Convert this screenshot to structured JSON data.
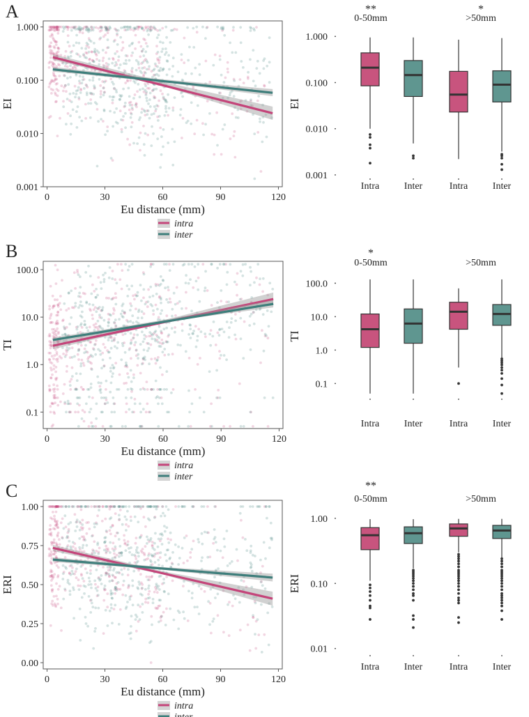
{
  "figure": {
    "colors": {
      "intra": "#c4457a",
      "inter": "#3e7e7b",
      "intra_box": "#c8547e",
      "inter_box": "#5f9690",
      "frame": "#555555",
      "ci": "#9a9a9a"
    },
    "legend": {
      "intra": "intra",
      "inter": "inter"
    }
  },
  "chart_data": [
    {
      "id": "A-scatter",
      "panel_letter": "A",
      "type": "scatter",
      "xlabel": "Eu distance (mm)",
      "ylabel": "EI",
      "xlim": [
        -2,
        122
      ],
      "ylim": [
        0.001,
        1.3
      ],
      "yscale": "log",
      "xticks": [
        0,
        30,
        60,
        90,
        120
      ],
      "yticks": [
        0.001,
        0.01,
        0.1,
        1.0
      ],
      "yticklabels": [
        "0.001",
        "0.010",
        "0.100",
        "1.000"
      ],
      "series": [
        {
          "name": "intra",
          "fit": [
            [
              3,
              0.27
            ],
            [
              117,
              0.024
            ]
          ],
          "ci": [
            [
              3,
              0.24,
              0.31
            ],
            [
              60,
              0.078,
              0.094
            ],
            [
              117,
              0.018,
              0.032
            ]
          ]
        },
        {
          "name": "inter",
          "fit": [
            [
              3,
              0.16
            ],
            [
              117,
              0.058
            ]
          ],
          "ci": [
            [
              3,
              0.145,
              0.178
            ],
            [
              60,
              0.092,
              0.104
            ],
            [
              117,
              0.05,
              0.068
            ]
          ]
        }
      ]
    },
    {
      "id": "A-box",
      "type": "box",
      "ylabel": "EI",
      "yscale": "log",
      "ylim": [
        0.001,
        1.2
      ],
      "yticks": [
        0.001,
        0.01,
        0.1,
        1.0
      ],
      "yticklabels": [
        "0.001",
        "0.010",
        "0.100",
        "1.000"
      ],
      "groups": [
        {
          "label": "0-50mm",
          "sig": "**"
        },
        {
          "label": ">50mm",
          "sig": "*"
        }
      ],
      "boxes": [
        {
          "label": "Intra",
          "series": "intra",
          "group": 0,
          "whisker_low": 0.01,
          "q1": 0.085,
          "median": 0.21,
          "q3": 0.44,
          "whisker_high": 0.95,
          "outliers": [
            0.0075,
            0.0065,
            0.0045,
            0.0038,
            0.0018
          ]
        },
        {
          "label": "Inter",
          "series": "inter",
          "group": 0,
          "whisker_low": 0.0048,
          "q1": 0.05,
          "median": 0.145,
          "q3": 0.3,
          "whisker_high": 0.95,
          "outliers": [
            0.0026,
            0.0023
          ]
        },
        {
          "label": "Intra",
          "series": "intra",
          "group": 1,
          "whisker_low": 0.0022,
          "q1": 0.023,
          "median": 0.055,
          "q3": 0.175,
          "whisker_high": 0.85,
          "outliers": []
        },
        {
          "label": "Inter",
          "series": "inter",
          "group": 1,
          "whisker_low": 0.0032,
          "q1": 0.038,
          "median": 0.09,
          "q3": 0.18,
          "whisker_high": 0.92,
          "outliers": [
            0.0028,
            0.0026,
            0.0023,
            0.0017,
            0.0013
          ]
        }
      ]
    },
    {
      "id": "B-scatter",
      "panel_letter": "B",
      "type": "scatter",
      "xlabel": "Eu distance (mm)",
      "ylabel": "TI",
      "xlim": [
        -2,
        122
      ],
      "ylim": [
        0.045,
        150
      ],
      "yscale": "log",
      "xticks": [
        0,
        30,
        60,
        90,
        120
      ],
      "yticks": [
        0.1,
        1,
        10,
        100
      ],
      "yticklabels": [
        "0.1",
        "1.0",
        "10.0",
        "100.0"
      ],
      "series": [
        {
          "name": "intra",
          "fit": [
            [
              3,
              2.5
            ],
            [
              117,
              24
            ]
          ],
          "ci": [
            [
              3,
              2.1,
              2.9
            ],
            [
              60,
              7.6,
              8.6
            ],
            [
              117,
              18,
              33
            ]
          ]
        },
        {
          "name": "inter",
          "fit": [
            [
              3,
              3.3
            ],
            [
              117,
              19
            ]
          ],
          "ci": [
            [
              3,
              2.9,
              3.7
            ],
            [
              60,
              7.9,
              8.7
            ],
            [
              117,
              16,
              23
            ]
          ]
        }
      ]
    },
    {
      "id": "B-box",
      "type": "box",
      "ylabel": "TI",
      "yscale": "log",
      "ylim": [
        0.045,
        150
      ],
      "yticks": [
        0.1,
        1,
        10,
        100
      ],
      "yticklabels": [
        "0.1",
        "1.0",
        "10.0",
        "100.0"
      ],
      "groups": [
        {
          "label": "0-50mm",
          "sig": "*"
        },
        {
          "label": ">50mm",
          "sig": ""
        }
      ],
      "boxes": [
        {
          "label": "Intra",
          "series": "intra",
          "group": 0,
          "whisker_low": 0.05,
          "q1": 1.2,
          "median": 4.2,
          "q3": 12,
          "whisker_high": 130,
          "outliers": []
        },
        {
          "label": "Inter",
          "series": "inter",
          "group": 0,
          "whisker_low": 0.05,
          "q1": 1.6,
          "median": 6.2,
          "q3": 17,
          "whisker_high": 130,
          "outliers": []
        },
        {
          "label": "Intra",
          "series": "intra",
          "group": 1,
          "whisker_low": 0.3,
          "q1": 4.2,
          "median": 14,
          "q3": 27,
          "whisker_high": 70,
          "outliers": [
            0.1
          ]
        },
        {
          "label": "Inter",
          "series": "inter",
          "group": 1,
          "whisker_low": 0.6,
          "q1": 5.5,
          "median": 12,
          "q3": 23,
          "whisker_high": 130,
          "outliers": [
            0.55,
            0.48,
            0.42,
            0.36,
            0.3,
            0.25,
            0.2,
            0.14,
            0.09,
            0.05
          ]
        }
      ]
    },
    {
      "id": "C-scatter",
      "panel_letter": "C",
      "type": "scatter",
      "xlabel": "Eu distance (mm)",
      "ylabel": "ERI",
      "xlim": [
        -2,
        122
      ],
      "ylim": [
        -0.04,
        1.04
      ],
      "yscale": "linear",
      "xticks": [
        0,
        30,
        60,
        90,
        120
      ],
      "yticks": [
        0,
        0.25,
        0.5,
        0.75,
        1.0
      ],
      "yticklabels": [
        "0.00",
        "0.25",
        "0.50",
        "0.75",
        "1.00"
      ],
      "series": [
        {
          "name": "intra",
          "fit": [
            [
              3,
              0.735
            ],
            [
              117,
              0.41
            ]
          ],
          "ci": [
            [
              3,
              0.715,
              0.755
            ],
            [
              60,
              0.565,
              0.585
            ],
            [
              117,
              0.365,
              0.455
            ]
          ]
        },
        {
          "name": "inter",
          "fit": [
            [
              3,
              0.66
            ],
            [
              117,
              0.545
            ]
          ],
          "ci": [
            [
              3,
              0.645,
              0.675
            ],
            [
              60,
              0.595,
              0.612
            ],
            [
              117,
              0.52,
              0.57
            ]
          ]
        }
      ]
    },
    {
      "id": "C-box",
      "type": "box",
      "ylabel": "ERI",
      "yscale": "log",
      "ylim": [
        0.009,
        1.1
      ],
      "yticks": [
        0.01,
        0.1,
        1.0
      ],
      "yticklabels": [
        "0.01",
        "0.10",
        "1.00"
      ],
      "groups": [
        {
          "label": "0-50mm",
          "sig": "**"
        },
        {
          "label": ">50mm",
          "sig": ""
        }
      ],
      "boxes": [
        {
          "label": "Intra",
          "series": "intra",
          "group": 0,
          "whisker_low": 0.11,
          "q1": 0.33,
          "median": 0.55,
          "q3": 0.72,
          "whisker_high": 0.97,
          "outliers": [
            0.095,
            0.085,
            0.075,
            0.065,
            0.055,
            0.045,
            0.042,
            0.028
          ]
        },
        {
          "label": "Inter",
          "series": "inter",
          "group": 0,
          "whisker_low": 0.17,
          "q1": 0.41,
          "median": 0.59,
          "q3": 0.74,
          "whisker_high": 0.97,
          "outliers": [
            0.16,
            0.15,
            0.14,
            0.13,
            0.12,
            0.11,
            0.1,
            0.09,
            0.08,
            0.07,
            0.065,
            0.055,
            0.032,
            0.028,
            0.021
          ]
        },
        {
          "label": "Intra",
          "series": "intra",
          "group": 1,
          "whisker_low": 0.3,
          "q1": 0.53,
          "median": 0.7,
          "q3": 0.82,
          "whisker_high": 0.98,
          "outliers": [
            0.28,
            0.26,
            0.24,
            0.22,
            0.2,
            0.18,
            0.16,
            0.15,
            0.14,
            0.13,
            0.12,
            0.11,
            0.1,
            0.09,
            0.08,
            0.07,
            0.06,
            0.055,
            0.05,
            0.03,
            0.025
          ]
        },
        {
          "label": "Inter",
          "series": "inter",
          "group": 1,
          "whisker_low": 0.25,
          "q1": 0.49,
          "median": 0.65,
          "q3": 0.78,
          "whisker_high": 0.98,
          "outliers": [
            0.24,
            0.22,
            0.2,
            0.18,
            0.16,
            0.15,
            0.14,
            0.13,
            0.12,
            0.11,
            0.1,
            0.09,
            0.08,
            0.07,
            0.065,
            0.06,
            0.055,
            0.05,
            0.045,
            0.038,
            0.028
          ]
        }
      ]
    }
  ]
}
